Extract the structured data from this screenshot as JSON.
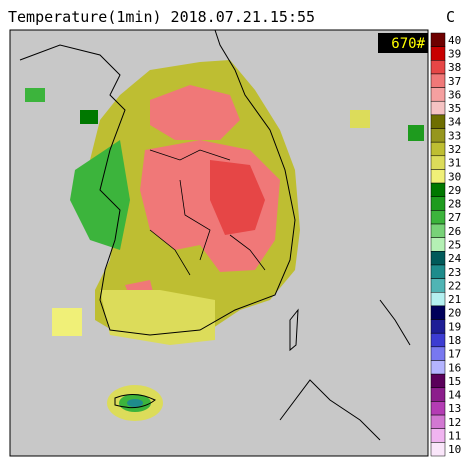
{
  "header": {
    "title": "Temperature(1min) 2018.07.21.15:55",
    "unit": "C"
  },
  "badge": "670#",
  "colorbar": {
    "values": [
      40,
      39,
      38,
      37,
      36,
      35,
      34,
      33,
      32,
      31,
      30,
      29,
      28,
      27,
      26,
      25,
      24,
      23,
      22,
      21,
      20,
      19,
      18,
      17,
      16,
      15,
      14,
      13,
      12,
      11,
      10
    ],
    "colors": [
      "#6e0000",
      "#c80000",
      "#e64646",
      "#f07878",
      "#f5a0a0",
      "#f5c3c3",
      "#6e6e00",
      "#96961e",
      "#bebe32",
      "#dcdc5a",
      "#f0f078",
      "#007800",
      "#1e9b1e",
      "#3cb43c",
      "#78d278",
      "#b4f0b4",
      "#005a5a",
      "#1e8c8c",
      "#50b4b4",
      "#b4f0f0",
      "#00005a",
      "#1e1e96",
      "#3c3cd2",
      "#7878f0",
      "#b4b4ff",
      "#5a005a",
      "#8c1e8c",
      "#b43cb4",
      "#d278d2",
      "#f0b4f0",
      "#fae6fa"
    ]
  }
}
